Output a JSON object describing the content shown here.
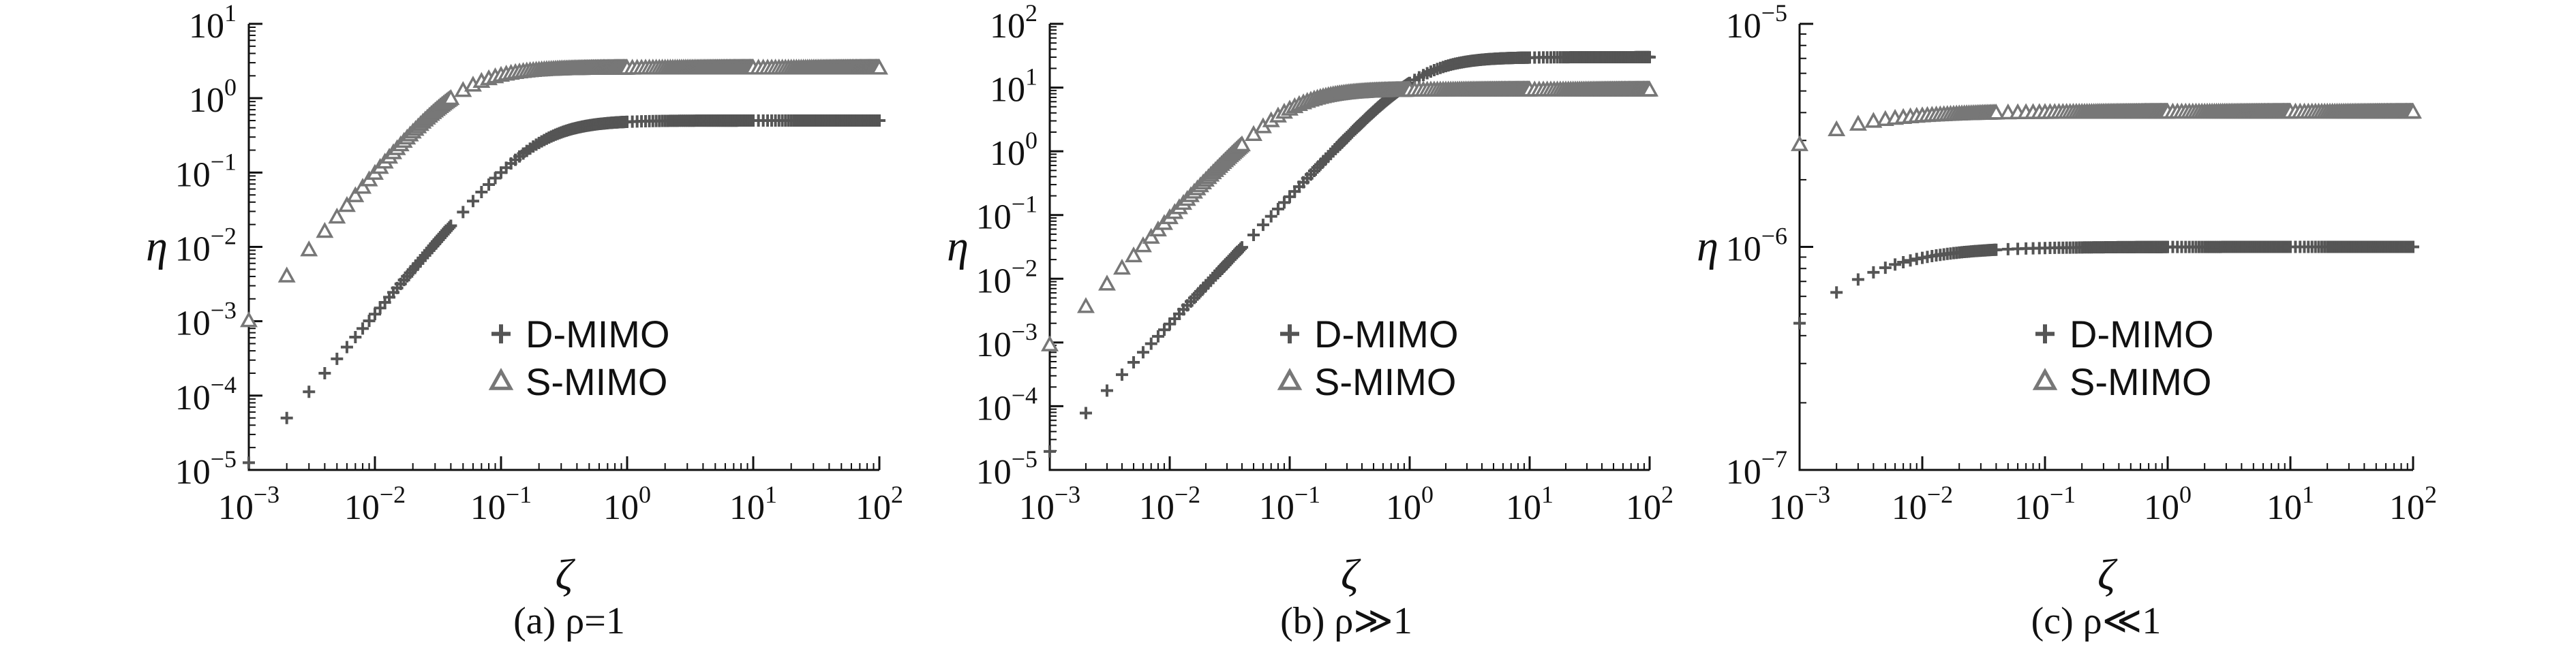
{
  "chart_data": [
    {
      "type": "scatter",
      "caption": "(a) ρ=1",
      "xlabel": "ζ",
      "ylabel": "η",
      "xscale": "log",
      "yscale": "log",
      "xlim": [
        0.001,
        100
      ],
      "ylim": [
        1e-05,
        10
      ],
      "x_ticks": [
        {
          "base": "10",
          "exp": "−3"
        },
        {
          "base": "10",
          "exp": "−2"
        },
        {
          "base": "10",
          "exp": "−1"
        },
        {
          "base": "10",
          "exp": "0"
        },
        {
          "base": "10",
          "exp": "1"
        },
        {
          "base": "10",
          "exp": "2"
        }
      ],
      "y_ticks": [
        {
          "base": "10",
          "exp": "−5"
        },
        {
          "base": "10",
          "exp": "−4"
        },
        {
          "base": "10",
          "exp": "−3"
        },
        {
          "base": "10",
          "exp": "−2"
        },
        {
          "base": "10",
          "exp": "−1"
        },
        {
          "base": "10",
          "exp": "0"
        },
        {
          "base": "10",
          "exp": "1"
        }
      ],
      "legend_position": "lower-right",
      "series": [
        {
          "name": "D-MIMO",
          "marker": "plus",
          "color": "#555555",
          "curve": {
            "asymptote": 0.5,
            "scale": 0.2,
            "power": 2
          }
        },
        {
          "name": "S-MIMO",
          "marker": "triangle",
          "color": "#777777",
          "curve": {
            "asymptote": 2.5,
            "scale": 0.05,
            "power": 2
          }
        }
      ]
    },
    {
      "type": "scatter",
      "caption": "(b) ρ≫1",
      "xlabel": "ζ",
      "ylabel": "η",
      "xscale": "log",
      "yscale": "log",
      "xlim": [
        0.001,
        100
      ],
      "ylim": [
        1e-05,
        100
      ],
      "x_ticks": [
        {
          "base": "10",
          "exp": "−3"
        },
        {
          "base": "10",
          "exp": "−2"
        },
        {
          "base": "10",
          "exp": "−1"
        },
        {
          "base": "10",
          "exp": "0"
        },
        {
          "base": "10",
          "exp": "1"
        },
        {
          "base": "10",
          "exp": "2"
        }
      ],
      "y_ticks": [
        {
          "base": "10",
          "exp": "−5"
        },
        {
          "base": "10",
          "exp": "−4"
        },
        {
          "base": "10",
          "exp": "−3"
        },
        {
          "base": "10",
          "exp": "−2"
        },
        {
          "base": "10",
          "exp": "−1"
        },
        {
          "base": "10",
          "exp": "0"
        },
        {
          "base": "10",
          "exp": "1"
        },
        {
          "base": "10",
          "exp": "2"
        }
      ],
      "legend_position": "lower-right",
      "series": [
        {
          "name": "D-MIMO",
          "marker": "plus",
          "color": "#555555",
          "curve": {
            "asymptote": 30,
            "scale": 1.24,
            "power": 2
          }
        },
        {
          "name": "S-MIMO",
          "marker": "triangle",
          "color": "#777777",
          "curve": {
            "asymptote": 9,
            "scale": 0.1,
            "power": 2
          }
        }
      ]
    },
    {
      "type": "scatter",
      "caption": "(c) ρ≪1",
      "xlabel": "ζ",
      "ylabel": "η",
      "xscale": "log",
      "yscale": "log",
      "xlim": [
        0.001,
        100
      ],
      "ylim": [
        1e-07,
        1e-05
      ],
      "x_ticks": [
        {
          "base": "10",
          "exp": "−3"
        },
        {
          "base": "10",
          "exp": "−2"
        },
        {
          "base": "10",
          "exp": "−1"
        },
        {
          "base": "10",
          "exp": "0"
        },
        {
          "base": "10",
          "exp": "1"
        },
        {
          "base": "10",
          "exp": "2"
        }
      ],
      "y_ticks": [
        {
          "base": "10",
          "exp": "−7"
        },
        {
          "base": "10",
          "exp": "−6"
        },
        {
          "base": "10",
          "exp": "−5"
        }
      ],
      "legend_position": "lower-right",
      "series": [
        {
          "name": "D-MIMO",
          "marker": "plus",
          "color": "#555555",
          "curve": {
            "asymptote": 1e-06,
            "scale": 0.0012,
            "power": 1
          }
        },
        {
          "name": "S-MIMO",
          "marker": "triangle",
          "color": "#777777",
          "curve": {
            "asymptote": 4e-06,
            "scale": 0.0004,
            "power": 1
          }
        }
      ]
    }
  ]
}
